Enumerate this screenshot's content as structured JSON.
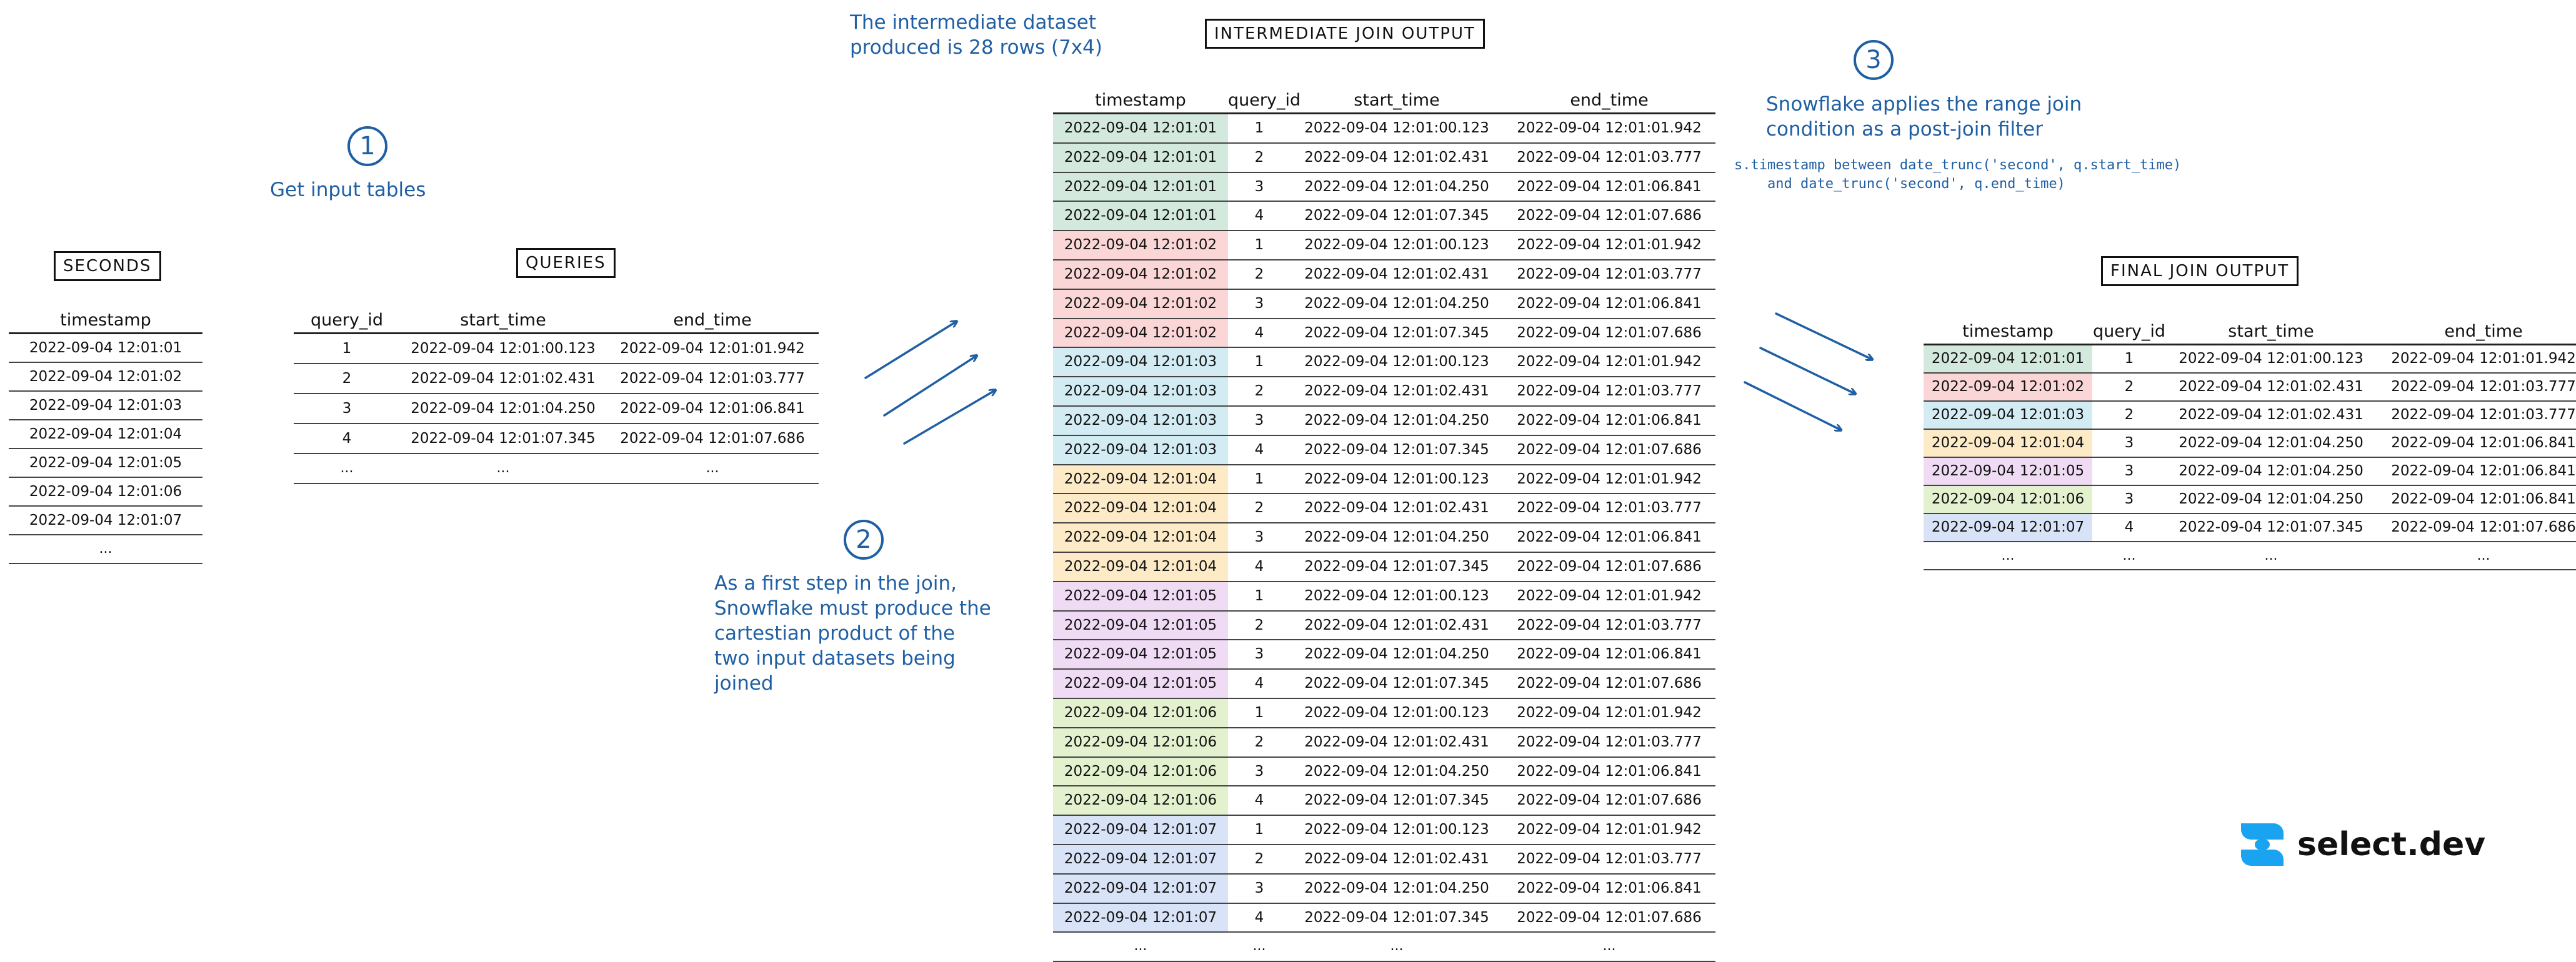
{
  "annotations": {
    "step1_num": "1",
    "step1_text": "Get input tables",
    "step2_num": "2",
    "step2_text": "As a first step in the join,\nSnowflake must produce the\ncartestian product of the\ntwo input datasets being\njoined",
    "step3_num": "3",
    "step3_text": "Snowflake applies the range join\ncondition as a post-join filter",
    "step3_code": "s.timestamp between date_trunc('second', q.start_time)\n    and date_trunc('second', q.end_time)",
    "intermediate_note": "The intermediate dataset\nproduced is 28 rows (7x4)"
  },
  "colors": {
    "annotation": "#1f5fa3",
    "row_fills": [
      "#d3e9de",
      "#fad6d6",
      "#d3ecf3",
      "#fdebc8",
      "#f0dbf5",
      "#e3f1cf",
      "#d9e3f7"
    ]
  },
  "seconds_table": {
    "title": "SECONDS",
    "headers": [
      "timestamp"
    ],
    "rows": [
      [
        "2022-09-04 12:01:01"
      ],
      [
        "2022-09-04 12:01:02"
      ],
      [
        "2022-09-04 12:01:03"
      ],
      [
        "2022-09-04 12:01:04"
      ],
      [
        "2022-09-04 12:01:05"
      ],
      [
        "2022-09-04 12:01:06"
      ],
      [
        "2022-09-04 12:01:07"
      ],
      [
        "..."
      ]
    ]
  },
  "queries_table": {
    "title": "QUERIES",
    "headers": [
      "query_id",
      "start_time",
      "end_time"
    ],
    "rows": [
      [
        "1",
        "2022-09-04 12:01:00.123",
        "2022-09-04 12:01:01.942"
      ],
      [
        "2",
        "2022-09-04 12:01:02.431",
        "2022-09-04 12:01:03.777"
      ],
      [
        "3",
        "2022-09-04 12:01:04.250",
        "2022-09-04 12:01:06.841"
      ],
      [
        "4",
        "2022-09-04 12:01:07.345",
        "2022-09-04 12:01:07.686"
      ],
      [
        "...",
        "...",
        "..."
      ]
    ]
  },
  "intermediate_table": {
    "title": "INTERMEDIATE JOIN OUTPUT",
    "headers": [
      "timestamp",
      "query_id",
      "start_time",
      "end_time"
    ],
    "rows": [
      [
        "2022-09-04 12:01:01",
        "1",
        "2022-09-04 12:01:00.123",
        "2022-09-04 12:01:01.942"
      ],
      [
        "2022-09-04 12:01:01",
        "2",
        "2022-09-04 12:01:02.431",
        "2022-09-04 12:01:03.777"
      ],
      [
        "2022-09-04 12:01:01",
        "3",
        "2022-09-04 12:01:04.250",
        "2022-09-04 12:01:06.841"
      ],
      [
        "2022-09-04 12:01:01",
        "4",
        "2022-09-04 12:01:07.345",
        "2022-09-04 12:01:07.686"
      ],
      [
        "2022-09-04 12:01:02",
        "1",
        "2022-09-04 12:01:00.123",
        "2022-09-04 12:01:01.942"
      ],
      [
        "2022-09-04 12:01:02",
        "2",
        "2022-09-04 12:01:02.431",
        "2022-09-04 12:01:03.777"
      ],
      [
        "2022-09-04 12:01:02",
        "3",
        "2022-09-04 12:01:04.250",
        "2022-09-04 12:01:06.841"
      ],
      [
        "2022-09-04 12:01:02",
        "4",
        "2022-09-04 12:01:07.345",
        "2022-09-04 12:01:07.686"
      ],
      [
        "2022-09-04 12:01:03",
        "1",
        "2022-09-04 12:01:00.123",
        "2022-09-04 12:01:01.942"
      ],
      [
        "2022-09-04 12:01:03",
        "2",
        "2022-09-04 12:01:02.431",
        "2022-09-04 12:01:03.777"
      ],
      [
        "2022-09-04 12:01:03",
        "3",
        "2022-09-04 12:01:04.250",
        "2022-09-04 12:01:06.841"
      ],
      [
        "2022-09-04 12:01:03",
        "4",
        "2022-09-04 12:01:07.345",
        "2022-09-04 12:01:07.686"
      ],
      [
        "2022-09-04 12:01:04",
        "1",
        "2022-09-04 12:01:00.123",
        "2022-09-04 12:01:01.942"
      ],
      [
        "2022-09-04 12:01:04",
        "2",
        "2022-09-04 12:01:02.431",
        "2022-09-04 12:01:03.777"
      ],
      [
        "2022-09-04 12:01:04",
        "3",
        "2022-09-04 12:01:04.250",
        "2022-09-04 12:01:06.841"
      ],
      [
        "2022-09-04 12:01:04",
        "4",
        "2022-09-04 12:01:07.345",
        "2022-09-04 12:01:07.686"
      ],
      [
        "2022-09-04 12:01:05",
        "1",
        "2022-09-04 12:01:00.123",
        "2022-09-04 12:01:01.942"
      ],
      [
        "2022-09-04 12:01:05",
        "2",
        "2022-09-04 12:01:02.431",
        "2022-09-04 12:01:03.777"
      ],
      [
        "2022-09-04 12:01:05",
        "3",
        "2022-09-04 12:01:04.250",
        "2022-09-04 12:01:06.841"
      ],
      [
        "2022-09-04 12:01:05",
        "4",
        "2022-09-04 12:01:07.345",
        "2022-09-04 12:01:07.686"
      ],
      [
        "2022-09-04 12:01:06",
        "1",
        "2022-09-04 12:01:00.123",
        "2022-09-04 12:01:01.942"
      ],
      [
        "2022-09-04 12:01:06",
        "2",
        "2022-09-04 12:01:02.431",
        "2022-09-04 12:01:03.777"
      ],
      [
        "2022-09-04 12:01:06",
        "3",
        "2022-09-04 12:01:04.250",
        "2022-09-04 12:01:06.841"
      ],
      [
        "2022-09-04 12:01:06",
        "4",
        "2022-09-04 12:01:07.345",
        "2022-09-04 12:01:07.686"
      ],
      [
        "2022-09-04 12:01:07",
        "1",
        "2022-09-04 12:01:00.123",
        "2022-09-04 12:01:01.942"
      ],
      [
        "2022-09-04 12:01:07",
        "2",
        "2022-09-04 12:01:02.431",
        "2022-09-04 12:01:03.777"
      ],
      [
        "2022-09-04 12:01:07",
        "3",
        "2022-09-04 12:01:04.250",
        "2022-09-04 12:01:06.841"
      ],
      [
        "2022-09-04 12:01:07",
        "4",
        "2022-09-04 12:01:07.345",
        "2022-09-04 12:01:07.686"
      ],
      [
        "...",
        "...",
        "...",
        "..."
      ]
    ]
  },
  "final_table": {
    "title": "FINAL JOIN OUTPUT",
    "headers": [
      "timestamp",
      "query_id",
      "start_time",
      "end_time"
    ],
    "rows": [
      [
        "2022-09-04 12:01:01",
        "1",
        "2022-09-04 12:01:00.123",
        "2022-09-04 12:01:01.942"
      ],
      [
        "2022-09-04 12:01:02",
        "2",
        "2022-09-04 12:01:02.431",
        "2022-09-04 12:01:03.777"
      ],
      [
        "2022-09-04 12:01:03",
        "2",
        "2022-09-04 12:01:02.431",
        "2022-09-04 12:01:03.777"
      ],
      [
        "2022-09-04 12:01:04",
        "3",
        "2022-09-04 12:01:04.250",
        "2022-09-04 12:01:06.841"
      ],
      [
        "2022-09-04 12:01:05",
        "3",
        "2022-09-04 12:01:04.250",
        "2022-09-04 12:01:06.841"
      ],
      [
        "2022-09-04 12:01:06",
        "3",
        "2022-09-04 12:01:04.250",
        "2022-09-04 12:01:06.841"
      ],
      [
        "2022-09-04 12:01:07",
        "4",
        "2022-09-04 12:01:07.345",
        "2022-09-04 12:01:07.686"
      ],
      [
        "...",
        "...",
        "...",
        "..."
      ]
    ]
  },
  "logo": {
    "icon": "select-dev-logo-icon",
    "text": "select.dev"
  }
}
